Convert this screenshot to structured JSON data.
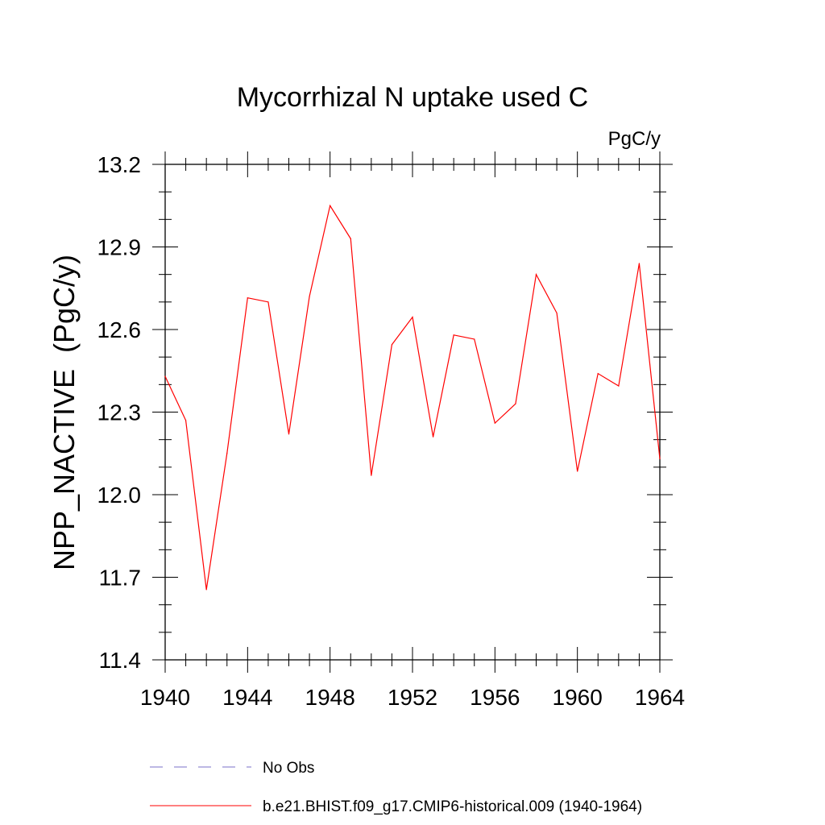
{
  "chart_data": {
    "type": "line",
    "title": "Mycorrhizal N uptake used C",
    "units_label": "PgC/y",
    "ylabel": "NPP_NACTIVE  (PgC/y)",
    "xlabel": "",
    "xlim": [
      1940,
      1964
    ],
    "ylim": [
      11.4,
      13.2
    ],
    "x_ticks": [
      1940,
      1944,
      1948,
      1952,
      1956,
      1960,
      1964
    ],
    "x_tick_labels": [
      "1940",
      "1944",
      "1948",
      "1952",
      "1956",
      "1960",
      "1964"
    ],
    "y_ticks": [
      11.4,
      11.7,
      12.0,
      12.3,
      12.6,
      12.9,
      13.2
    ],
    "y_tick_labels": [
      "11.4",
      "11.7",
      "12.0",
      "12.3",
      "12.6",
      "12.9",
      "13.2"
    ],
    "grid": false,
    "series": [
      {
        "name": "b.e21.BHIST.f09_g17.CMIP6-historical.009 (1940-1964)",
        "color": "#ff0000",
        "style": "solid",
        "x": [
          1940,
          1941,
          1942,
          1943,
          1944,
          1945,
          1946,
          1947,
          1948,
          1949,
          1950,
          1951,
          1952,
          1953,
          1954,
          1955,
          1956,
          1957,
          1958,
          1959,
          1960,
          1961,
          1962,
          1963,
          1964
        ],
        "y": [
          12.43,
          12.27,
          11.655,
          12.15,
          12.715,
          12.7,
          12.22,
          12.72,
          13.05,
          12.93,
          12.07,
          12.545,
          12.645,
          12.21,
          12.58,
          12.565,
          12.26,
          12.33,
          12.8,
          12.66,
          12.085,
          12.44,
          12.395,
          12.84,
          12.13
        ]
      }
    ],
    "legend": {
      "placement": "bottom",
      "entries": [
        {
          "label": "No Obs",
          "color": "#7a72c8",
          "style": "dashed"
        },
        {
          "label": "b.e21.BHIST.f09_g17.CMIP6-historical.009 (1940-1964)",
          "color": "#ff0000",
          "style": "solid"
        }
      ]
    }
  }
}
